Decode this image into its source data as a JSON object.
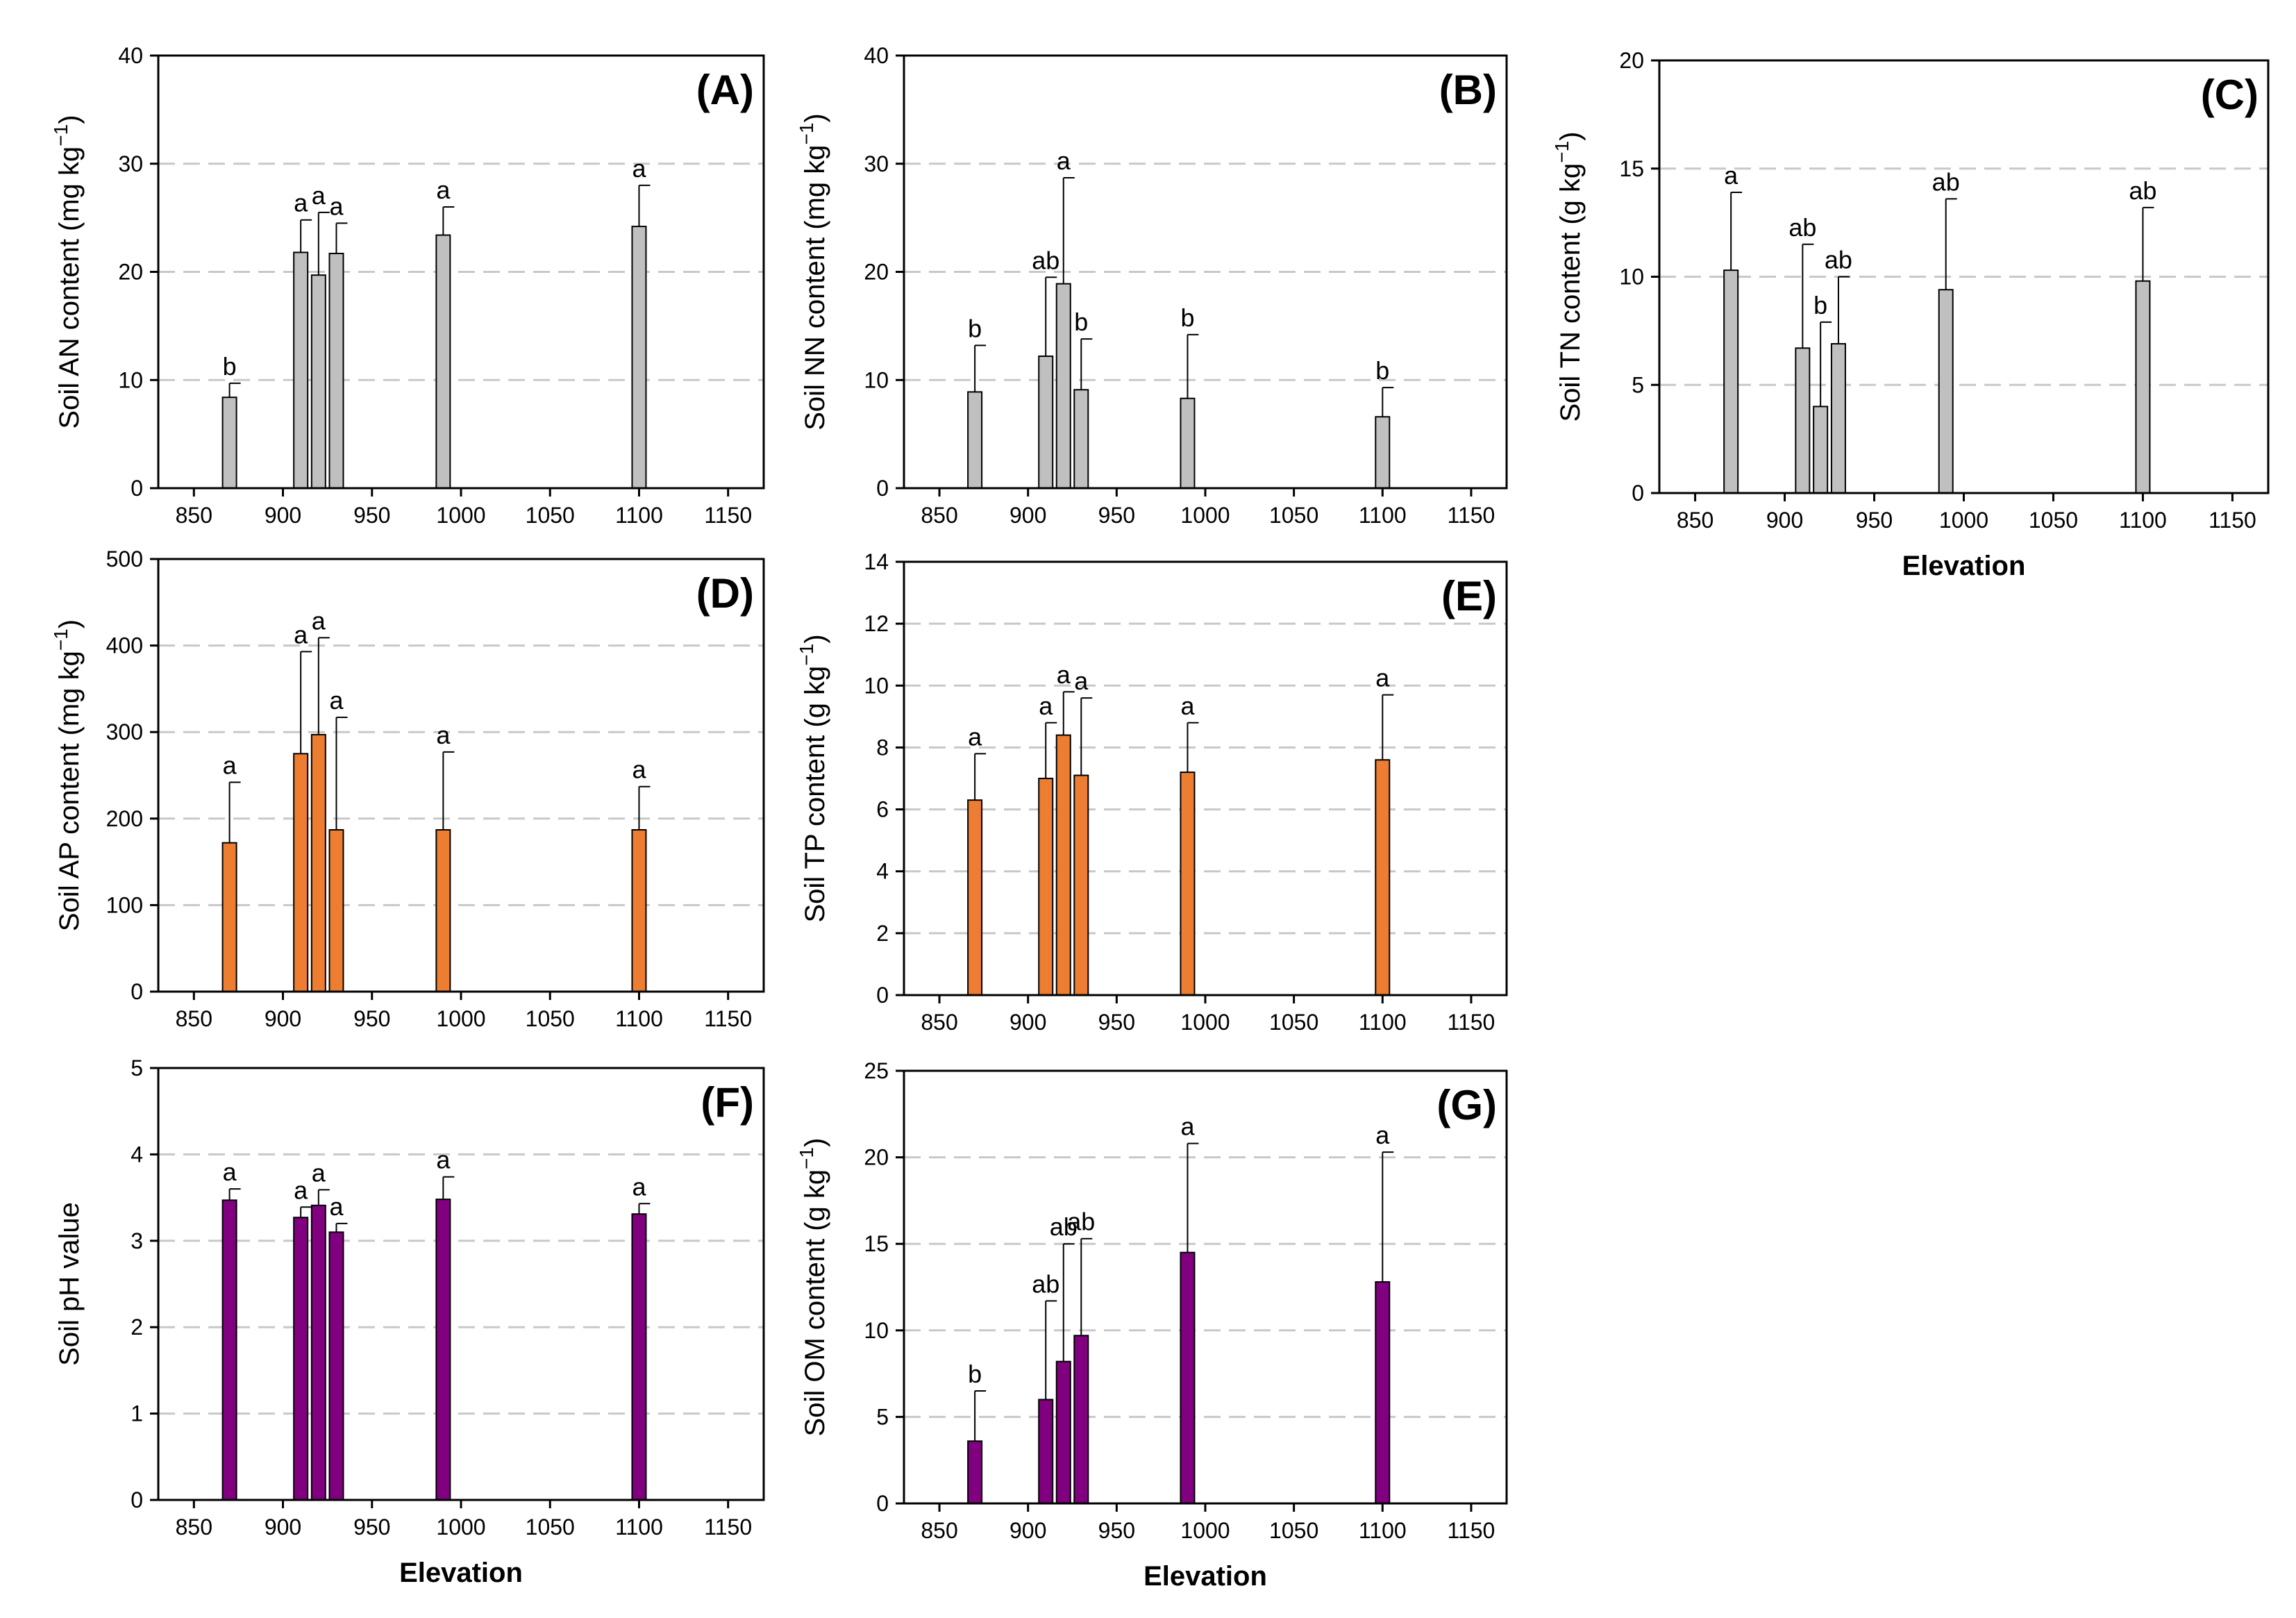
{
  "chart_data": [
    {
      "panel": "(A)",
      "type": "bar",
      "ylabel_prefix": "Soil AN content (mg kg",
      "ylabel_exponent": "−1",
      "ylabel_suffix": ")",
      "xlabel": "",
      "xlim": [
        830,
        1170
      ],
      "ylim": [
        0,
        40
      ],
      "xticks": [
        850,
        900,
        950,
        1000,
        1050,
        1100,
        1150
      ],
      "yticks": [
        0,
        10,
        20,
        30,
        40
      ],
      "bar_color": "#c0c0c0",
      "x": [
        870,
        910,
        920,
        930,
        990,
        1100
      ],
      "values": [
        8.4,
        21.8,
        19.7,
        21.7,
        23.4,
        24.2
      ],
      "errors": [
        1.3,
        3.0,
        5.8,
        2.8,
        2.6,
        3.8
      ],
      "letters": [
        "b",
        "a",
        "a",
        "a",
        "a",
        "a"
      ]
    },
    {
      "panel": "(B)",
      "type": "bar",
      "ylabel_prefix": "Soil NN content (mg kg",
      "ylabel_exponent": "−1",
      "ylabel_suffix": ")",
      "xlabel": "",
      "xlim": [
        830,
        1170
      ],
      "ylim": [
        0,
        40
      ],
      "xticks": [
        850,
        900,
        950,
        1000,
        1050,
        1100,
        1150
      ],
      "yticks": [
        0,
        10,
        20,
        30,
        40
      ],
      "bar_color": "#c0c0c0",
      "x": [
        870,
        910,
        920,
        930,
        990,
        1100
      ],
      "values": [
        8.9,
        12.2,
        18.9,
        9.1,
        8.3,
        6.6
      ],
      "errors": [
        4.3,
        7.3,
        9.8,
        4.7,
        5.9,
        2.7
      ],
      "letters": [
        "b",
        "ab",
        "a",
        "b",
        "b",
        "b"
      ]
    },
    {
      "panel": "(C)",
      "type": "bar",
      "ylabel_prefix": "Soil TN content (g kg",
      "ylabel_exponent": "−1",
      "ylabel_suffix": ")",
      "xlabel": "Elevation",
      "xlim": [
        830,
        1170
      ],
      "ylim": [
        0,
        20
      ],
      "xticks": [
        850,
        900,
        950,
        1000,
        1050,
        1100,
        1150
      ],
      "yticks": [
        0,
        5,
        10,
        15,
        20
      ],
      "bar_color": "#c0c0c0",
      "x": [
        870,
        910,
        920,
        930,
        990,
        1100
      ],
      "values": [
        10.3,
        6.7,
        4.0,
        6.9,
        9.4,
        9.8
      ],
      "errors": [
        3.6,
        4.8,
        3.9,
        3.1,
        4.2,
        3.4
      ],
      "letters": [
        "a",
        "ab",
        "b",
        "ab",
        "ab",
        "ab"
      ]
    },
    {
      "panel": "(D)",
      "type": "bar",
      "ylabel_prefix": "Soil AP content (mg kg",
      "ylabel_exponent": "−1",
      "ylabel_suffix": ")",
      "xlabel": "",
      "xlim": [
        830,
        1170
      ],
      "ylim": [
        0,
        500
      ],
      "xticks": [
        850,
        900,
        950,
        1000,
        1050,
        1100,
        1150
      ],
      "yticks": [
        0,
        100,
        200,
        300,
        400,
        500
      ],
      "bar_color": "#ed7d31",
      "x": [
        870,
        910,
        920,
        930,
        990,
        1100
      ],
      "values": [
        172,
        275,
        297,
        187,
        187,
        187
      ],
      "errors": [
        70,
        118,
        112,
        130,
        90,
        50
      ],
      "letters": [
        "a",
        "a",
        "a",
        "a",
        "a",
        "a"
      ]
    },
    {
      "panel": "(E)",
      "type": "bar",
      "ylabel_prefix": "Soil TP content (g kg",
      "ylabel_exponent": "−1",
      "ylabel_suffix": ")",
      "xlabel": "",
      "xlim": [
        830,
        1170
      ],
      "ylim": [
        0,
        14
      ],
      "xticks": [
        850,
        900,
        950,
        1000,
        1050,
        1100,
        1150
      ],
      "yticks": [
        0,
        2,
        4,
        6,
        8,
        10,
        12,
        14
      ],
      "bar_color": "#ed7d31",
      "x": [
        870,
        910,
        920,
        930,
        990,
        1100
      ],
      "values": [
        6.3,
        7.0,
        8.4,
        7.1,
        7.2,
        7.6
      ],
      "errors": [
        1.5,
        1.8,
        1.4,
        2.5,
        1.6,
        2.1
      ],
      "letters": [
        "a",
        "a",
        "a",
        "a",
        "a",
        "a"
      ]
    },
    {
      "panel": "(F)",
      "type": "bar",
      "ylabel_prefix": "Soil pH value",
      "ylabel_exponent": "",
      "ylabel_suffix": "",
      "xlabel": "Elevation",
      "xlim": [
        830,
        1170
      ],
      "ylim": [
        0,
        5
      ],
      "xticks": [
        850,
        900,
        950,
        1000,
        1050,
        1100,
        1150
      ],
      "yticks": [
        0,
        1,
        2,
        3,
        4,
        5
      ],
      "bar_color": "#800080",
      "x": [
        870,
        910,
        920,
        930,
        990,
        1100
      ],
      "values": [
        3.47,
        3.27,
        3.41,
        3.1,
        3.48,
        3.31
      ],
      "errors": [
        0.13,
        0.12,
        0.18,
        0.1,
        0.26,
        0.12
      ],
      "letters": [
        "a",
        "a",
        "a",
        "a",
        "a",
        "a"
      ]
    },
    {
      "panel": "(G)",
      "type": "bar",
      "ylabel_prefix": "Soil OM content (g kg",
      "ylabel_exponent": "−1",
      "ylabel_suffix": ")",
      "xlabel": "Elevation",
      "xlim": [
        830,
        1170
      ],
      "ylim": [
        0,
        25
      ],
      "xticks": [
        850,
        900,
        950,
        1000,
        1050,
        1100,
        1150
      ],
      "yticks": [
        0,
        5,
        10,
        15,
        20,
        25
      ],
      "bar_color": "#800080",
      "x": [
        870,
        910,
        920,
        930,
        990,
        1100
      ],
      "values": [
        3.6,
        6.0,
        8.2,
        9.7,
        14.5,
        12.8
      ],
      "errors": [
        2.9,
        5.7,
        6.8,
        5.6,
        6.3,
        7.5
      ],
      "letters": [
        "b",
        "ab",
        "ab",
        "ab",
        "a",
        "a"
      ]
    }
  ]
}
